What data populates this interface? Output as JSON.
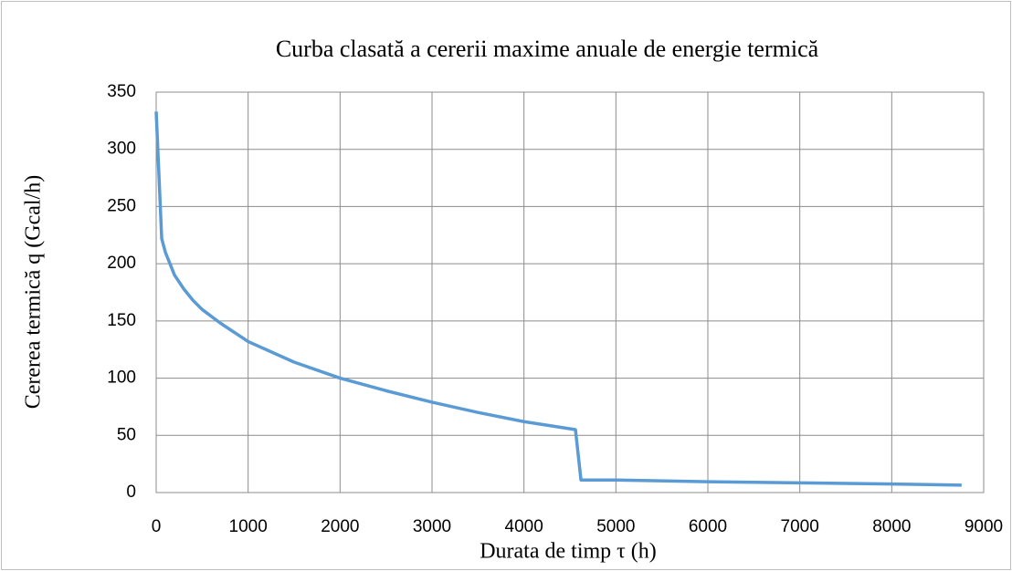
{
  "chart_data": {
    "type": "line",
    "title": "Curba clasată a cererii maxime anuale de energie termică",
    "xlabel": "Durata de timp τ (h)",
    "ylabel": "Cererea termică q (Gcal/h)",
    "grid": true,
    "xlim": [
      0,
      9000
    ],
    "xticks": [
      0,
      1000,
      2000,
      3000,
      4000,
      5000,
      6000,
      7000,
      8000,
      9000
    ],
    "ylim": [
      0,
      350
    ],
    "yticks": [
      0,
      50,
      100,
      150,
      200,
      250,
      300,
      350
    ],
    "x": [
      0,
      60,
      100,
      200,
      300,
      400,
      500,
      700,
      1000,
      1500,
      2000,
      2500,
      3000,
      3500,
      4000,
      4560,
      4620,
      5000,
      6000,
      7000,
      8000,
      8760
    ],
    "series": [
      {
        "color": "#5b9bd5",
        "values": [
          333,
          222,
          210,
          190,
          178,
          168,
          160,
          148,
          132,
          114,
          100,
          89,
          79,
          70,
          62,
          55,
          11,
          11,
          9.5,
          8.5,
          7.5,
          6.5
        ]
      }
    ]
  }
}
